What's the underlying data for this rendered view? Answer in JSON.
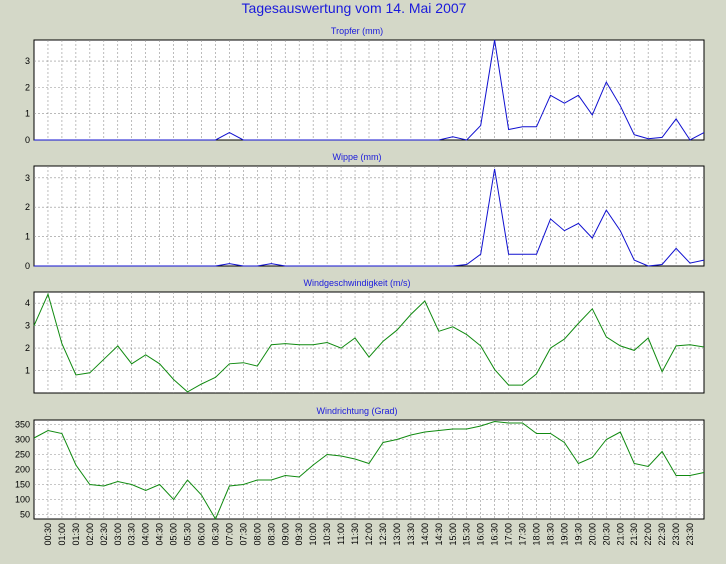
{
  "title": "Tagesauswertung vom 14. Mai 2007",
  "colors": {
    "background": "#d4d8c8",
    "title": "#1a1adc",
    "blue_series": "#1010d0",
    "green_series": "#108a10"
  },
  "chart_data": [
    {
      "type": "line",
      "title": "Tropfer (mm)",
      "ylim": [
        0,
        3.8
      ],
      "yticks": [
        0,
        1,
        2,
        3
      ],
      "grid": true,
      "color": "#1010d0",
      "x": [
        "00:00",
        "00:30",
        "01:00",
        "01:30",
        "02:00",
        "02:30",
        "03:00",
        "03:30",
        "04:00",
        "04:30",
        "05:00",
        "05:30",
        "06:00",
        "06:30",
        "07:00",
        "07:30",
        "08:00",
        "08:30",
        "09:00",
        "09:30",
        "10:00",
        "10:30",
        "11:00",
        "11:30",
        "12:00",
        "12:30",
        "13:00",
        "13:30",
        "14:00",
        "14:30",
        "15:00",
        "15:30",
        "16:00",
        "16:30",
        "17:00",
        "17:30",
        "18:00",
        "18:30",
        "19:00",
        "19:30",
        "20:00",
        "20:30",
        "21:00",
        "21:30",
        "22:00",
        "22:30",
        "23:00",
        "23:30",
        "24:00"
      ],
      "values": [
        0,
        0,
        0,
        0,
        0,
        0,
        0,
        0,
        0,
        0,
        0,
        0,
        0,
        0,
        0.28,
        0,
        0,
        0,
        0,
        0,
        0,
        0,
        0,
        0,
        0,
        0,
        0,
        0,
        0,
        0,
        0.12,
        0,
        0.55,
        3.8,
        0.4,
        0.5,
        0.5,
        1.7,
        1.4,
        1.7,
        0.95,
        2.2,
        1.3,
        0.2,
        0.05,
        0.1,
        0.8,
        0,
        0.28
      ]
    },
    {
      "type": "line",
      "title": "Wippe (mm)",
      "ylim": [
        0,
        3.4
      ],
      "yticks": [
        0,
        1,
        2,
        3
      ],
      "grid": true,
      "color": "#1010d0",
      "x": [
        "00:00",
        "00:30",
        "01:00",
        "01:30",
        "02:00",
        "02:30",
        "03:00",
        "03:30",
        "04:00",
        "04:30",
        "05:00",
        "05:30",
        "06:00",
        "06:30",
        "07:00",
        "07:30",
        "08:00",
        "08:30",
        "09:00",
        "09:30",
        "10:00",
        "10:30",
        "11:00",
        "11:30",
        "12:00",
        "12:30",
        "13:00",
        "13:30",
        "14:00",
        "14:30",
        "15:00",
        "15:30",
        "16:00",
        "16:30",
        "17:00",
        "17:30",
        "18:00",
        "18:30",
        "19:00",
        "19:30",
        "20:00",
        "20:30",
        "21:00",
        "21:30",
        "22:00",
        "22:30",
        "23:00",
        "23:30",
        "24:00"
      ],
      "values": [
        0,
        0,
        0,
        0,
        0,
        0,
        0,
        0,
        0,
        0,
        0,
        0,
        0,
        0,
        0.08,
        0,
        0,
        0.08,
        0,
        0,
        0,
        0,
        0,
        0,
        0,
        0,
        0,
        0,
        0,
        0,
        0,
        0.05,
        0.4,
        3.3,
        0.4,
        0.4,
        0.4,
        1.6,
        1.2,
        1.45,
        0.95,
        1.9,
        1.2,
        0.2,
        0,
        0.05,
        0.6,
        0.1,
        0.2
      ]
    },
    {
      "type": "line",
      "title": "Windgeschwindigkeit (m/s)",
      "ylim": [
        0,
        4.5
      ],
      "yticks": [
        1,
        2,
        3,
        4
      ],
      "grid": true,
      "color": "#108a10",
      "x": [
        "00:00",
        "00:30",
        "01:00",
        "01:30",
        "02:00",
        "02:30",
        "03:00",
        "03:30",
        "04:00",
        "04:30",
        "05:00",
        "05:30",
        "06:00",
        "06:30",
        "07:00",
        "07:30",
        "08:00",
        "08:30",
        "09:00",
        "09:30",
        "10:00",
        "10:30",
        "11:00",
        "11:30",
        "12:00",
        "12:30",
        "13:00",
        "13:30",
        "14:00",
        "14:30",
        "15:00",
        "15:30",
        "16:00",
        "16:30",
        "17:00",
        "17:30",
        "18:00",
        "18:30",
        "19:00",
        "19:30",
        "20:00",
        "20:30",
        "21:00",
        "21:30",
        "22:00",
        "22:30",
        "23:00",
        "23:30",
        "24:00"
      ],
      "values": [
        3.0,
        4.4,
        2.2,
        0.8,
        0.9,
        1.5,
        2.1,
        1.3,
        1.7,
        1.3,
        0.6,
        0.05,
        0.4,
        0.7,
        1.3,
        1.35,
        1.2,
        2.15,
        2.2,
        2.15,
        2.15,
        2.25,
        2.0,
        2.45,
        1.6,
        2.3,
        2.8,
        3.5,
        4.1,
        2.75,
        2.95,
        2.6,
        2.1,
        1.05,
        0.35,
        0.35,
        0.85,
        2.0,
        2.4,
        3.1,
        3.75,
        2.5,
        2.1,
        1.9,
        2.45,
        0.95,
        2.1,
        2.15,
        2.05
      ]
    },
    {
      "type": "line",
      "title": "Windrichtung (Grad)",
      "ylim": [
        35,
        365
      ],
      "yticks": [
        50,
        100,
        150,
        200,
        250,
        300,
        350
      ],
      "grid": true,
      "color": "#108a10",
      "x": [
        "00:00",
        "00:30",
        "01:00",
        "01:30",
        "02:00",
        "02:30",
        "03:00",
        "03:30",
        "04:00",
        "04:30",
        "05:00",
        "05:30",
        "06:00",
        "06:30",
        "07:00",
        "07:30",
        "08:00",
        "08:30",
        "09:00",
        "09:30",
        "10:00",
        "10:30",
        "11:00",
        "11:30",
        "12:00",
        "12:30",
        "13:00",
        "13:30",
        "14:00",
        "14:30",
        "15:00",
        "15:30",
        "16:00",
        "16:30",
        "17:00",
        "17:30",
        "18:00",
        "18:30",
        "19:00",
        "19:30",
        "20:00",
        "20:30",
        "21:00",
        "21:30",
        "22:00",
        "22:30",
        "23:00",
        "23:30",
        "24:00"
      ],
      "values": [
        305,
        330,
        320,
        215,
        150,
        145,
        160,
        150,
        130,
        150,
        100,
        165,
        115,
        35,
        145,
        150,
        165,
        165,
        180,
        175,
        215,
        250,
        245,
        235,
        220,
        290,
        300,
        315,
        325,
        330,
        335,
        335,
        345,
        360,
        355,
        355,
        320,
        320,
        290,
        220,
        240,
        300,
        325,
        220,
        210,
        260,
        180,
        180,
        190
      ]
    }
  ],
  "x_axis": {
    "tick_labels": [
      "00:30",
      "01:00",
      "01:30",
      "02:00",
      "02:30",
      "03:00",
      "03:30",
      "04:00",
      "04:30",
      "05:00",
      "05:30",
      "06:00",
      "06:30",
      "07:00",
      "07:30",
      "08:00",
      "08:30",
      "09:00",
      "09:30",
      "10:00",
      "10:30",
      "11:00",
      "11:30",
      "12:00",
      "12:30",
      "13:00",
      "13:30",
      "14:00",
      "14:30",
      "15:00",
      "15:30",
      "16:00",
      "16:30",
      "17:00",
      "17:30",
      "18:00",
      "18:30",
      "19:00",
      "19:30",
      "20:00",
      "20:30",
      "21:00",
      "21:30",
      "22:00",
      "22:30",
      "23:00",
      "23:30"
    ]
  }
}
